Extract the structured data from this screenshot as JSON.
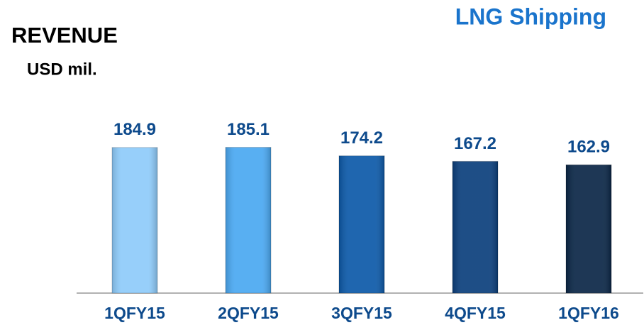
{
  "chart_data": {
    "type": "bar",
    "title": "LNG Shipping",
    "subtitle": "REVENUE",
    "y_label": "USD mil.",
    "categories": [
      "1QFY15",
      "2QFY15",
      "3QFY15",
      "4QFY15",
      "1QFY16"
    ],
    "values": [
      184.9,
      185.1,
      174.2,
      167.2,
      162.9
    ],
    "colors": [
      "#8ecbfa",
      "#4aa8f1",
      "#0c59a8",
      "#0b3f7c",
      "#0a2646"
    ],
    "ylim": [
      0,
      200
    ]
  }
}
